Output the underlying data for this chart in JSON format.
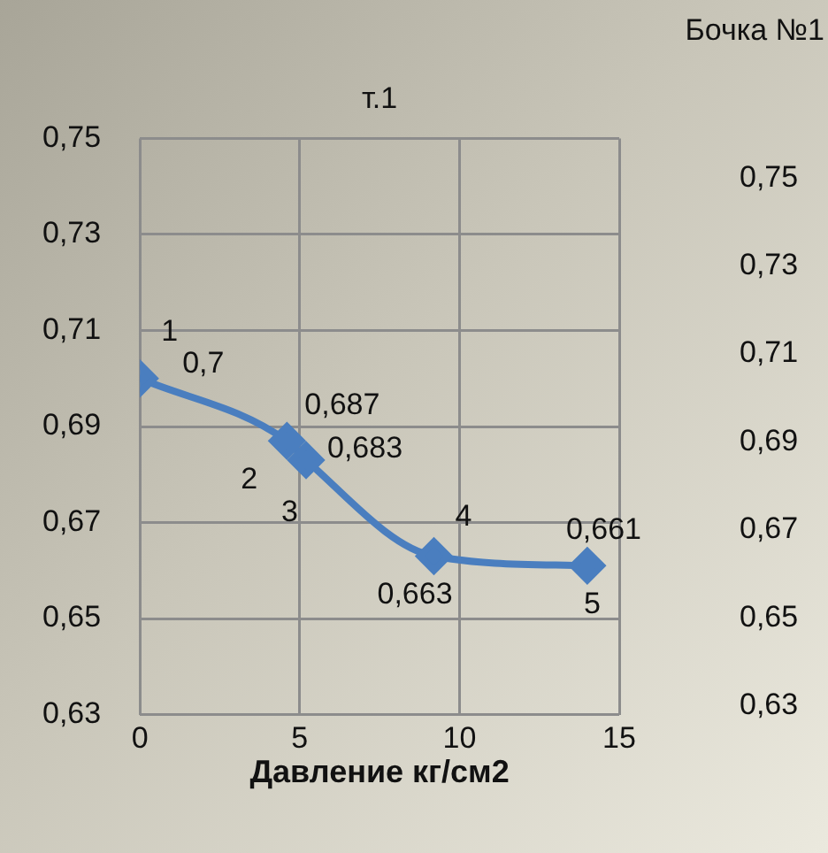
{
  "chart_data": {
    "type": "line",
    "title": "т.1",
    "subtitle": "Бочка №1",
    "xlabel": "Давление кг/см2",
    "x": [
      0,
      4.6,
      5.2,
      9.2,
      14
    ],
    "series": [
      {
        "color": "#4a7ebf",
        "values": [
          0.7,
          0.687,
          0.683,
          0.663,
          0.661
        ],
        "value_labels": [
          "0,7",
          "0,687",
          "0,683",
          "0,663",
          "0,661"
        ]
      }
    ],
    "annotations": [
      {
        "text": "1",
        "x": 0,
        "y": 0.7
      },
      {
        "text": "2",
        "x": 4.6,
        "y": 0.687
      },
      {
        "text": "3",
        "x": 5.2,
        "y": 0.683
      },
      {
        "text": "4",
        "x": 9.2,
        "y": 0.663
      },
      {
        "text": "5",
        "x": 14,
        "y": 0.661
      }
    ],
    "xlim": [
      0,
      15
    ],
    "xticks": [
      0,
      5,
      10,
      15
    ],
    "ylim": [
      0.63,
      0.75
    ],
    "yticks": [
      {
        "value": 0.63,
        "label": "0,63"
      },
      {
        "value": 0.65,
        "label": "0,65"
      },
      {
        "value": 0.67,
        "label": "0,67"
      },
      {
        "value": 0.69,
        "label": "0,69"
      },
      {
        "value": 0.71,
        "label": "0,71"
      },
      {
        "value": 0.73,
        "label": "0,73"
      },
      {
        "value": 0.75,
        "label": "0,75"
      }
    ],
    "y2lim": [
      0.628,
      0.759
    ],
    "y2ticks": [
      {
        "value": 0.63,
        "label": "0,63"
      },
      {
        "value": 0.65,
        "label": "0,65"
      },
      {
        "value": 0.67,
        "label": "0,67"
      },
      {
        "value": 0.69,
        "label": "0,69"
      },
      {
        "value": 0.71,
        "label": "0,71"
      },
      {
        "value": 0.73,
        "label": "0,73"
      },
      {
        "value": 0.75,
        "label": "0,75"
      }
    ],
    "grid": true,
    "legend": false,
    "marker": "diamond",
    "line_style": "solid"
  }
}
